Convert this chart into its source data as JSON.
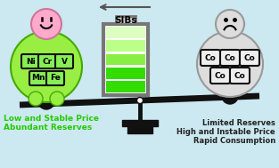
{
  "bg_color": "#cce8f0",
  "left_text_line1": "Low and Stable Price",
  "left_text_line2": "Abundant Reserves",
  "right_text_line1": "Limited Reserves",
  "right_text_line2": "High and Instable Price",
  "right_text_line3": "Rapid Consumption",
  "left_text_color": "#22cc00",
  "right_text_color": "#222222",
  "battery_label": "SIBs",
  "left_elements_row1": [
    "Ni",
    "Cr",
    "V"
  ],
  "left_elements_row2": [
    "Mn",
    "Fe"
  ],
  "right_elements_row1": [
    "Co",
    "Co",
    "Co"
  ],
  "right_elements_row2": [
    "Co",
    "Co"
  ],
  "arrow_color": "#555555",
  "scale_color": "#111111",
  "battery_border_color": "#777777",
  "green_dark": "#33dd00",
  "green_mid": "#88ee44",
  "green_light": "#bbff88",
  "green_vlight": "#ddffc0",
  "left_circle_color": "#99ee44",
  "left_circle_edge": "#44aa00",
  "right_circle_color": "#dddddd",
  "right_circle_edge": "#999999",
  "happy_face_color": "#ffaacc",
  "happy_face_edge": "#cc7799",
  "sad_face_color": "#dddddd",
  "sad_face_edge": "#999999",
  "tile_color_left": "#88ee55",
  "tile_color_right": "#eeeeee",
  "tile_edge": "#111111"
}
